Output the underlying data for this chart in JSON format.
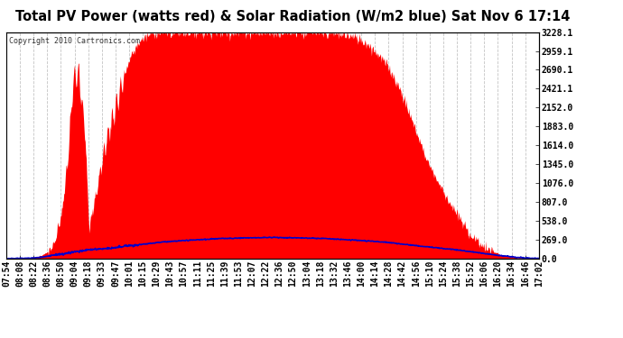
{
  "title": "Total PV Power (watts red) & Solar Radiation (W/m2 blue) Sat Nov 6 17:14",
  "copyright_text": "Copyright 2010 Cartronics.com",
  "y_max": 3228.1,
  "y_min": 0.0,
  "y_ticks": [
    0.0,
    269.0,
    538.0,
    807.0,
    1076.0,
    1345.0,
    1614.0,
    1883.0,
    2152.0,
    2421.1,
    2690.1,
    2959.1,
    3228.1
  ],
  "x_labels": [
    "07:54",
    "08:08",
    "08:22",
    "08:36",
    "08:50",
    "09:04",
    "09:18",
    "09:33",
    "09:47",
    "10:01",
    "10:15",
    "10:29",
    "10:43",
    "10:57",
    "11:11",
    "11:25",
    "11:39",
    "11:53",
    "12:07",
    "12:22",
    "12:36",
    "12:50",
    "13:04",
    "13:18",
    "13:32",
    "13:46",
    "14:00",
    "14:14",
    "14:28",
    "14:42",
    "14:56",
    "15:10",
    "15:24",
    "15:38",
    "15:52",
    "16:06",
    "16:20",
    "16:34",
    "16:46",
    "17:02"
  ],
  "background_color": "#ffffff",
  "plot_bg_color": "#ffffff",
  "red_color": "#ff0000",
  "blue_color": "#0000cc",
  "grid_color": "#aaaaaa",
  "title_fontsize": 10.5,
  "tick_fontsize": 7.0,
  "pv_key_points_t": [
    0.0,
    0.04,
    0.06,
    0.075,
    0.09,
    0.105,
    0.115,
    0.125,
    0.135,
    0.148,
    0.155,
    0.165,
    0.175,
    0.185,
    0.195,
    0.21,
    0.22,
    0.235,
    0.25,
    0.27,
    0.29,
    0.31,
    0.33,
    0.35,
    0.38,
    0.41,
    0.44,
    0.47,
    0.5,
    0.53,
    0.56,
    0.59,
    0.62,
    0.64,
    0.66,
    0.68,
    0.7,
    0.72,
    0.74,
    0.76,
    0.775,
    0.79,
    0.81,
    0.84,
    0.87,
    0.9,
    0.93,
    0.96,
    1.0
  ],
  "pv_key_points_v": [
    0,
    0,
    30,
    80,
    200,
    700,
    1400,
    2500,
    2700,
    1800,
    400,
    800,
    1200,
    1600,
    1900,
    2300,
    2600,
    2900,
    3100,
    3200,
    3228,
    3228,
    3228,
    3228,
    3228,
    3228,
    3228,
    3228,
    3228,
    3228,
    3228,
    3220,
    3210,
    3180,
    3150,
    3050,
    2900,
    2700,
    2400,
    2000,
    1700,
    1400,
    1100,
    700,
    350,
    150,
    50,
    10,
    0
  ],
  "solar_key_points_t": [
    0.0,
    0.04,
    0.06,
    0.08,
    0.1,
    0.13,
    0.165,
    0.2,
    0.25,
    0.3,
    0.35,
    0.4,
    0.45,
    0.5,
    0.55,
    0.6,
    0.65,
    0.7,
    0.73,
    0.75,
    0.775,
    0.8,
    0.84,
    0.88,
    0.92,
    0.96,
    1.0
  ],
  "solar_key_points_v": [
    0,
    5,
    15,
    35,
    60,
    100,
    130,
    155,
    200,
    240,
    265,
    285,
    295,
    300,
    295,
    285,
    265,
    240,
    220,
    200,
    180,
    160,
    130,
    90,
    50,
    15,
    0
  ]
}
